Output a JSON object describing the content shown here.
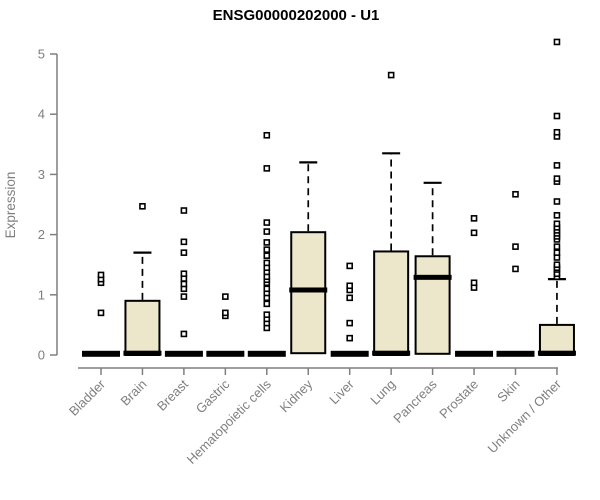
{
  "chart_data": {
    "type": "boxplot",
    "title": "ENSG00000202000 - U1",
    "ylabel": "Expression",
    "xlabel": "",
    "ylim": [
      0,
      5
    ],
    "yticks": [
      0,
      1,
      2,
      3,
      4,
      5
    ],
    "grid": false,
    "legend": false,
    "colors": {
      "box_fill": "#ece7ca",
      "box_stroke": "#000000",
      "median": "#000000",
      "whisker": "#000000",
      "outlier_stroke": "#000000",
      "outlier_fill": "#ffffff",
      "axis": "#7f7f7f",
      "tick_text": "#7f7f7f",
      "title_text": "#000000"
    },
    "categories": [
      "Bladder",
      "Brain",
      "Breast",
      "Gastric",
      "Hematopoietic cells",
      "Kidney",
      "Liver",
      "Lung",
      "Pancreas",
      "Prostate",
      "Skin",
      "Unknown / Other"
    ],
    "series": [
      {
        "label": "Bladder",
        "q1": 0,
        "median": 0.02,
        "q3": 0.04,
        "whisker_low": 0,
        "whisker_high": 0.04,
        "outliers": [
          0.7,
          1.2,
          1.26,
          1.33
        ]
      },
      {
        "label": "Brain",
        "q1": 0,
        "median": 0.03,
        "q3": 0.9,
        "whisker_low": 0,
        "whisker_high": 1.7,
        "outliers": [
          2.47
        ]
      },
      {
        "label": "Breast",
        "q1": 0,
        "median": 0.02,
        "q3": 0.04,
        "whisker_low": 0,
        "whisker_high": 0.04,
        "outliers": [
          0.35,
          0.97,
          1.1,
          1.18,
          1.27,
          1.35,
          1.7,
          1.88,
          2.4
        ]
      },
      {
        "label": "Gastric",
        "q1": 0,
        "median": 0.02,
        "q3": 0.04,
        "whisker_low": 0,
        "whisker_high": 0.04,
        "outliers": [
          0.65,
          0.7,
          0.97
        ]
      },
      {
        "label": "Hematopoietic cells",
        "q1": 0,
        "median": 0.02,
        "q3": 0.04,
        "whisker_low": 0,
        "whisker_high": 0.04,
        "outliers": [
          0.45,
          0.53,
          0.6,
          0.67,
          0.85,
          0.95,
          1.03,
          1.1,
          1.2,
          1.25,
          1.3,
          1.38,
          1.45,
          1.53,
          1.65,
          1.75,
          1.87,
          2.05,
          2.2,
          3.1,
          3.65
        ]
      },
      {
        "label": "Kidney",
        "q1": 0.03,
        "median": 1.08,
        "q3": 2.04,
        "whisker_low": 0,
        "whisker_high": 3.2,
        "outliers": []
      },
      {
        "label": "Liver",
        "q1": 0,
        "median": 0.02,
        "q3": 0.04,
        "whisker_low": 0,
        "whisker_high": 0.04,
        "outliers": [
          0.28,
          0.53,
          0.95,
          1.08,
          1.15,
          1.48
        ]
      },
      {
        "label": "Lung",
        "q1": 0,
        "median": 0.03,
        "q3": 1.72,
        "whisker_low": 0,
        "whisker_high": 3.35,
        "outliers": [
          4.65
        ]
      },
      {
        "label": "Pancreas",
        "q1": 0.02,
        "median": 1.29,
        "q3": 1.64,
        "whisker_low": 0,
        "whisker_high": 2.86,
        "outliers": []
      },
      {
        "label": "Prostate",
        "q1": 0,
        "median": 0.02,
        "q3": 0.04,
        "whisker_low": 0,
        "whisker_high": 0.04,
        "outliers": [
          1.12,
          1.2,
          2.03,
          2.27
        ]
      },
      {
        "label": "Skin",
        "q1": 0,
        "median": 0.02,
        "q3": 0.04,
        "whisker_low": 0,
        "whisker_high": 0.04,
        "outliers": [
          1.43,
          1.8,
          2.67
        ]
      },
      {
        "label": "Unknown / Other",
        "q1": 0,
        "median": 0.03,
        "q3": 0.5,
        "whisker_low": 0,
        "whisker_high": 1.26,
        "outliers": [
          1.3,
          1.35,
          1.42,
          1.45,
          1.5,
          1.62,
          1.7,
          1.8,
          1.92,
          1.97,
          2.02,
          2.07,
          2.12,
          2.18,
          2.32,
          2.55,
          2.88,
          2.93,
          3.15,
          3.63,
          3.7,
          3.97,
          5.2
        ]
      }
    ]
  }
}
